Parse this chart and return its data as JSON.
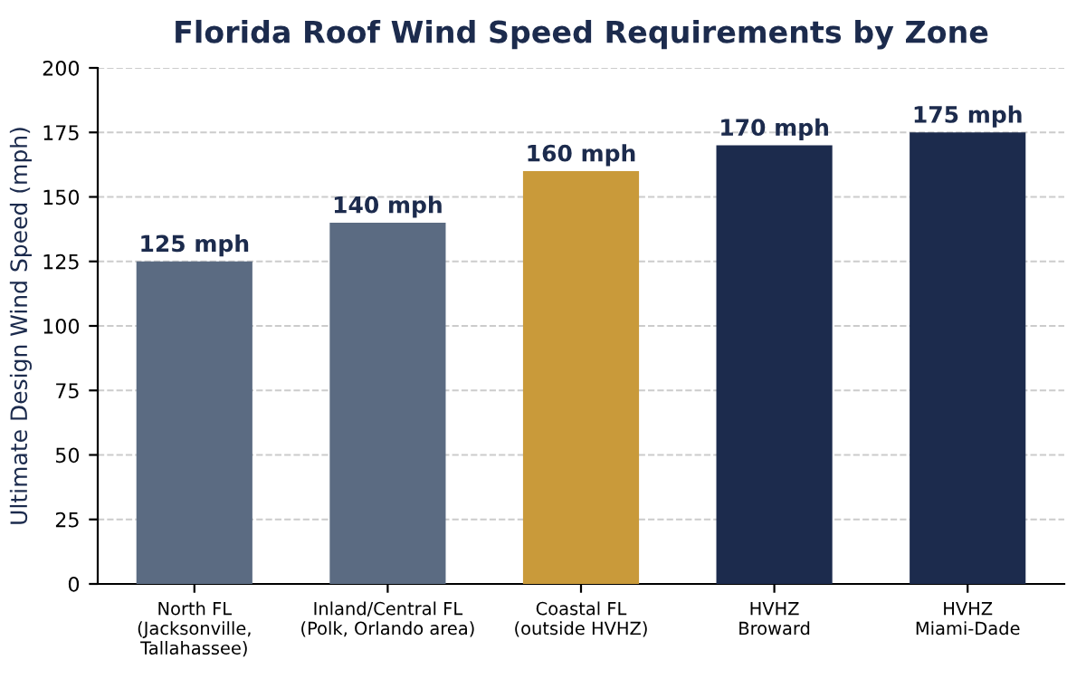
{
  "chart_data": {
    "type": "bar",
    "title": "Florida Roof Wind Speed Requirements by Zone",
    "ylabel": "Ultimate Design Wind Speed (mph)",
    "categories": [
      "North FL\n(Jacksonville,\nTallahassee)",
      "Inland/Central FL\n(Polk, Orlando area)",
      "Coastal FL\n(outside HVHZ)",
      "HVHZ\nBroward",
      "HVHZ\nMiami-Dade"
    ],
    "values": [
      125,
      140,
      160,
      170,
      175
    ],
    "value_labels": [
      "125 mph",
      "140 mph",
      "160 mph",
      "170 mph",
      "175 mph"
    ],
    "colors": [
      "#5b6b82",
      "#5b6b82",
      "#c99a3a",
      "#1c2b4d",
      "#1c2b4d"
    ],
    "ylim": [
      0,
      200
    ],
    "yticks": [
      0,
      25,
      50,
      75,
      100,
      125,
      150,
      175,
      200
    ],
    "grid": "y"
  }
}
